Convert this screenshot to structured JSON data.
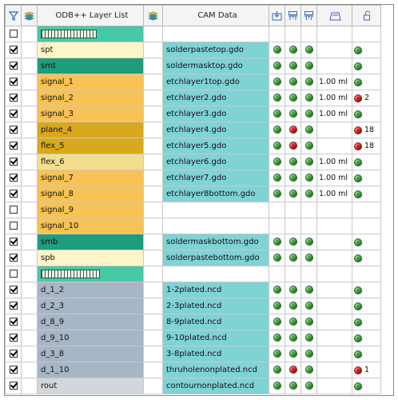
{
  "header": {
    "layer_list_label": "ODB++ Layer List",
    "cam_data_label": "CAM Data",
    "icons": [
      "filter-icon",
      "stack-icon",
      "stack-icon",
      "export-icon",
      "match-icon",
      "match-alt-icon",
      "thickness-icon",
      "lock-icon"
    ]
  },
  "colors": {
    "paste": "#fdf5c8",
    "mask": "#1e9c7c",
    "signal": "#f8c255",
    "plane": "#d9a81b",
    "flex": "#f3de8e",
    "drill": "#a7b6c6",
    "rout": "#d3d6da",
    "group": "#48c9a6",
    "cam": "#7fd3d5",
    "status_ok": "#39a23a",
    "status_error": "#d01e1e"
  },
  "rows": [
    {
      "checked": false,
      "layer": "",
      "type": "group",
      "cam": "",
      "s1": "",
      "s2": "",
      "s3": "",
      "thick": "",
      "err": "",
      "err_count": ""
    },
    {
      "checked": true,
      "layer": "spt",
      "type": "paste",
      "cam": "solderpastetop.gdo",
      "s1": "g",
      "s2": "g",
      "s3": "g",
      "thick": "",
      "err": "g",
      "err_count": ""
    },
    {
      "checked": true,
      "layer": "smt",
      "type": "mask",
      "cam": "soldermasktop.gdo",
      "s1": "g",
      "s2": "g",
      "s3": "g",
      "thick": "",
      "err": "g",
      "err_count": ""
    },
    {
      "checked": true,
      "layer": "signal_1",
      "type": "signal",
      "cam": "etchlayer1top.gdo",
      "s1": "g",
      "s2": "g",
      "s3": "g",
      "thick": "1.00 ml",
      "err": "g",
      "err_count": ""
    },
    {
      "checked": true,
      "layer": "signal_2",
      "type": "signal",
      "cam": "etchlayer2.gdo",
      "s1": "g",
      "s2": "g",
      "s3": "g",
      "thick": "1.00 ml",
      "err": "r",
      "err_count": "2"
    },
    {
      "checked": true,
      "layer": "signal_3",
      "type": "signal",
      "cam": "etchlayer3.gdo",
      "s1": "g",
      "s2": "g",
      "s3": "g",
      "thick": "1.00 ml",
      "err": "g",
      "err_count": ""
    },
    {
      "checked": true,
      "layer": "plane_4",
      "type": "plane",
      "cam": "etchlayer4.gdo",
      "s1": "g",
      "s2": "r",
      "s3": "g",
      "thick": "",
      "err": "r",
      "err_count": "18"
    },
    {
      "checked": true,
      "layer": "flex_5",
      "type": "plane",
      "cam": "etchlayer5.gdo",
      "s1": "g",
      "s2": "r",
      "s3": "g",
      "thick": "",
      "err": "r",
      "err_count": "18"
    },
    {
      "checked": true,
      "layer": "flex_6",
      "type": "flex",
      "cam": "etchlayer6.gdo",
      "s1": "g",
      "s2": "g",
      "s3": "g",
      "thick": "1.00 ml",
      "err": "g",
      "err_count": ""
    },
    {
      "checked": true,
      "layer": "signal_7",
      "type": "signal",
      "cam": "etchlayer7.gdo",
      "s1": "g",
      "s2": "g",
      "s3": "g",
      "thick": "1.00 ml",
      "err": "g",
      "err_count": ""
    },
    {
      "checked": true,
      "layer": "signal_8",
      "type": "signal",
      "cam": "etchlayer8bottom.gdo",
      "s1": "g",
      "s2": "g",
      "s3": "g",
      "thick": "1.00 ml",
      "err": "g",
      "err_count": ""
    },
    {
      "checked": false,
      "layer": "signal_9",
      "type": "signal",
      "cam": "",
      "s1": "",
      "s2": "",
      "s3": "",
      "thick": "",
      "err": "",
      "err_count": ""
    },
    {
      "checked": false,
      "layer": "signal_10",
      "type": "signal",
      "cam": "",
      "s1": "",
      "s2": "",
      "s3": "",
      "thick": "",
      "err": "",
      "err_count": ""
    },
    {
      "checked": true,
      "layer": "smb",
      "type": "mask",
      "cam": "soldermaskbottom.gdo",
      "s1": "g",
      "s2": "g",
      "s3": "g",
      "thick": "",
      "err": "g",
      "err_count": ""
    },
    {
      "checked": true,
      "layer": "spb",
      "type": "paste",
      "cam": "solderpastebottom.gdo",
      "s1": "g",
      "s2": "g",
      "s3": "g",
      "thick": "",
      "err": "g",
      "err_count": ""
    },
    {
      "checked": false,
      "layer": "",
      "type": "group2",
      "cam": "",
      "s1": "",
      "s2": "",
      "s3": "",
      "thick": "",
      "err": "",
      "err_count": ""
    },
    {
      "checked": true,
      "layer": "d_1_2",
      "type": "drill",
      "cam": "1-2plated.ncd",
      "s1": "g",
      "s2": "g",
      "s3": "g",
      "thick": "",
      "err": "g",
      "err_count": ""
    },
    {
      "checked": true,
      "layer": "d_2_3",
      "type": "drill",
      "cam": "2-3plated.ncd",
      "s1": "g",
      "s2": "g",
      "s3": "g",
      "thick": "",
      "err": "g",
      "err_count": ""
    },
    {
      "checked": true,
      "layer": "d_8_9",
      "type": "drill",
      "cam": "8-9plated.ncd",
      "s1": "g",
      "s2": "g",
      "s3": "g",
      "thick": "",
      "err": "g",
      "err_count": ""
    },
    {
      "checked": true,
      "layer": "d_9_10",
      "type": "drill",
      "cam": "9-10plated.ncd",
      "s1": "g",
      "s2": "g",
      "s3": "g",
      "thick": "",
      "err": "g",
      "err_count": ""
    },
    {
      "checked": true,
      "layer": "d_3_8",
      "type": "drill",
      "cam": "3-8plated.ncd",
      "s1": "g",
      "s2": "g",
      "s3": "g",
      "thick": "",
      "err": "g",
      "err_count": ""
    },
    {
      "checked": true,
      "layer": "d_1_10",
      "type": "drill",
      "cam": "thruholenonplated.ncd",
      "s1": "g",
      "s2": "r",
      "s3": "g",
      "thick": "",
      "err": "r",
      "err_count": "1"
    },
    {
      "checked": true,
      "layer": "rout",
      "type": "rout",
      "cam": "contournonplated.ncd",
      "s1": "g",
      "s2": "g",
      "s3": "g",
      "thick": "",
      "err": "g",
      "err_count": ""
    }
  ]
}
